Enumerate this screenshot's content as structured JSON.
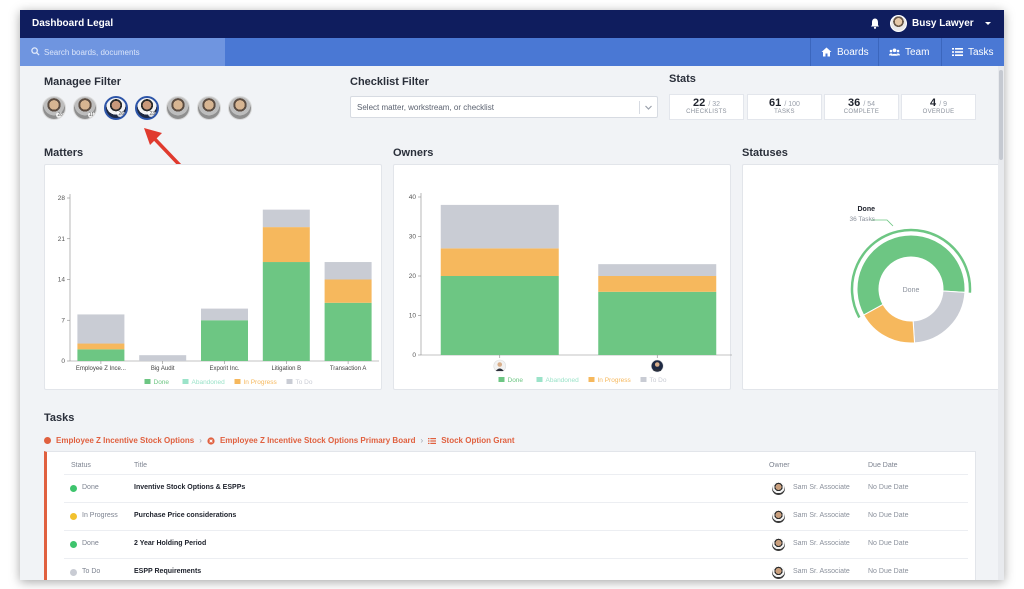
{
  "app": {
    "title": "Dashboard Legal",
    "user_name": "Busy Lawyer"
  },
  "search": {
    "placeholder": "Search boards, documents"
  },
  "nav": {
    "boards": "Boards",
    "team": "Team",
    "tasks": "Tasks"
  },
  "manager_filter": {
    "title": "Managee Filter",
    "avatars": [
      {
        "count": "28",
        "selected": false
      },
      {
        "count": "11",
        "selected": false
      },
      {
        "count": "26",
        "selected": true
      },
      {
        "count": "23",
        "selected": true
      },
      {
        "count": "",
        "selected": false
      },
      {
        "count": "",
        "selected": false
      },
      {
        "count": "",
        "selected": false
      }
    ]
  },
  "checklist_filter": {
    "title": "Checklist Filter",
    "placeholder": "Select matter, workstream, or checklist"
  },
  "stats": {
    "title": "Stats",
    "items": [
      {
        "value": "22",
        "total": "/ 32",
        "label": "CHECKLISTS"
      },
      {
        "value": "61",
        "total": "/ 100",
        "label": "TASKS"
      },
      {
        "value": "36",
        "total": "/ 54",
        "label": "COMPLETE"
      },
      {
        "value": "4",
        "total": "/ 9",
        "label": "OVERDUE"
      }
    ]
  },
  "colors": {
    "done": "#6dc683",
    "abandoned": "#9be3c9",
    "in_progress": "#f6b85d",
    "to_do": "#c9ccd4",
    "accent": "#e0603f",
    "navy": "#0f1d5e",
    "blue": "#4a78d4"
  },
  "legend": {
    "done": "Done",
    "abandoned": "Abandoned",
    "in_progress": "In Progress",
    "to_do": "To Do"
  },
  "chart_data": [
    {
      "type": "bar",
      "title": "Matters",
      "stacked": true,
      "categories": [
        "Employee Z Ince...",
        "Big Audit",
        "Exporit Inc.",
        "Litigation B",
        "Transaction A"
      ],
      "series": [
        {
          "name": "Done",
          "values": [
            2,
            0,
            7,
            17,
            10
          ]
        },
        {
          "name": "Abandoned",
          "values": [
            0,
            0,
            0,
            0,
            0
          ]
        },
        {
          "name": "In Progress",
          "values": [
            1,
            0,
            0,
            6,
            4
          ]
        },
        {
          "name": "To Do",
          "values": [
            5,
            1,
            2,
            3,
            3
          ]
        }
      ],
      "ylim": [
        0,
        28
      ],
      "yticks": [
        "0",
        "7",
        "14",
        "21",
        "28"
      ],
      "legend": "bottom"
    },
    {
      "type": "bar",
      "title": "Owners",
      "stacked": true,
      "categories": [
        "",
        ""
      ],
      "series": [
        {
          "name": "Done",
          "values": [
            20,
            16
          ]
        },
        {
          "name": "Abandoned",
          "values": [
            0,
            0
          ]
        },
        {
          "name": "In Progress",
          "values": [
            7,
            4
          ]
        },
        {
          "name": "To Do",
          "values": [
            11,
            3
          ]
        }
      ],
      "ylim": [
        0,
        40
      ],
      "yticks": [
        "0",
        "10",
        "20",
        "30",
        "40"
      ],
      "legend": "bottom"
    },
    {
      "type": "pie",
      "title": "Statuses",
      "donut": true,
      "center_label": "Done",
      "callout_label": "Done",
      "callout_sub": "36 Tasks",
      "slices": [
        {
          "name": "Done",
          "value": 36
        },
        {
          "name": "In Progress",
          "value": 11
        },
        {
          "name": "To Do",
          "value": 14
        }
      ]
    }
  ],
  "tasks": {
    "title": "Tasks",
    "breadcrumb": [
      "Employee Z Incentive Stock Options",
      "Employee Z Incentive Stock Options Primary Board",
      "Stock Option Grant"
    ],
    "columns": {
      "status": "Status",
      "title": "Title",
      "owner": "Owner",
      "due": "Due Date"
    },
    "rows": [
      {
        "status": "Done",
        "status_color": "#3ec46d",
        "title": "Inventive Stock Options & ESPPs",
        "owner": "Sam Sr. Associate",
        "due": "No Due Date"
      },
      {
        "status": "In Progress",
        "status_color": "#f2c12e",
        "title": "Purchase Price considerations",
        "owner": "Sam Sr. Associate",
        "due": "No Due Date"
      },
      {
        "status": "Done",
        "status_color": "#3ec46d",
        "title": "2 Year Holding Period",
        "owner": "Sam Sr. Associate",
        "due": "No Due Date"
      },
      {
        "status": "To Do",
        "status_color": "#c9ccd4",
        "title": "ESPP Requirements",
        "owner": "Sam Sr. Associate",
        "due": "No Due Date"
      }
    ]
  }
}
